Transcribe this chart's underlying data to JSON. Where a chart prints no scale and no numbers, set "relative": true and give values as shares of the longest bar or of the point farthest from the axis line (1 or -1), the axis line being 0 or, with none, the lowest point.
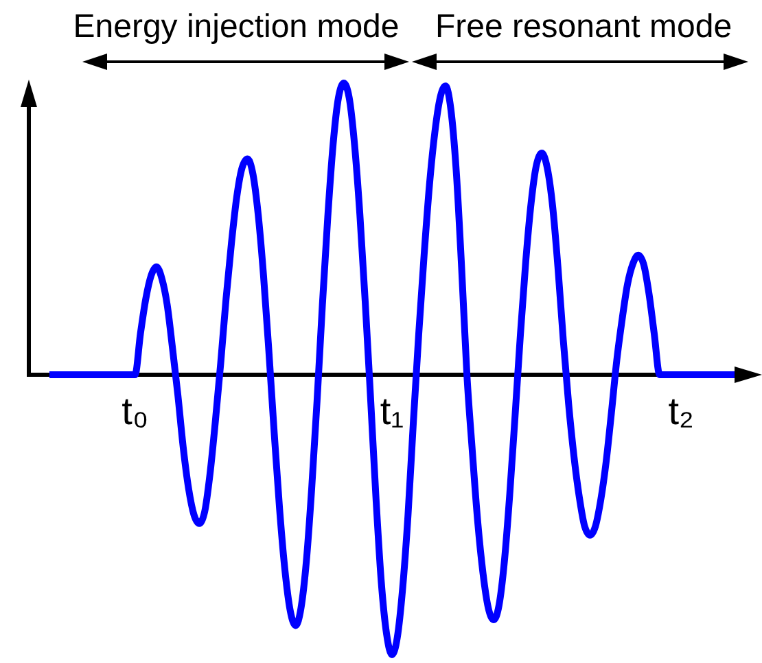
{
  "chart_data": {
    "type": "line",
    "relative": true,
    "tick_labels": "x",
    "annotations": [
      "Energy injection mode",
      "Free resonant mode"
    ],
    "categories": [
      null,
      null,
      null,
      null,
      null,
      null,
      null,
      null,
      null,
      null,
      null,
      null,
      null,
      null,
      null,
      null,
      "t₀",
      null,
      null,
      null,
      null,
      null,
      null,
      null,
      null,
      null,
      null,
      null,
      null,
      null,
      null,
      null,
      null,
      null,
      null,
      null,
      null,
      null,
      null,
      null,
      null,
      null,
      null,
      null,
      null,
      null,
      null,
      null,
      null,
      null,
      null,
      null,
      null,
      null,
      null,
      null,
      null,
      null,
      null,
      null,
      null,
      null,
      null,
      null,
      "t₁",
      null,
      null,
      null,
      null,
      null,
      null,
      null,
      null,
      null,
      null,
      null,
      null,
      null,
      null,
      null,
      null,
      null,
      null,
      null,
      null,
      null,
      null,
      null,
      null,
      null,
      null,
      null,
      null,
      null,
      null,
      null,
      null,
      null,
      null,
      null,
      null,
      null,
      null,
      null,
      null,
      null,
      null,
      null,
      null,
      null,
      null,
      null,
      null,
      null,
      null,
      null,
      null,
      null,
      "t₂",
      null,
      null,
      null,
      null,
      null,
      null,
      null,
      null,
      null,
      null
    ],
    "series": [
      {
        "color": "#0000ff",
        "values": [
          0,
          0,
          0,
          0,
          0,
          0,
          0,
          0,
          0,
          0,
          0,
          0,
          0,
          0,
          0,
          0,
          0,
          0.14,
          0.26,
          0.34,
          0.37,
          0.33,
          0.24,
          0.09,
          -0.07,
          -0.25,
          -0.39,
          -0.48,
          -0.51,
          -0.47,
          -0.34,
          -0.16,
          0.04,
          0.26,
          0.45,
          0.61,
          0.71,
          0.74,
          0.69,
          0.55,
          0.34,
          0.08,
          -0.2,
          -0.46,
          -0.67,
          -0.81,
          -0.86,
          -0.8,
          -0.64,
          -0.39,
          -0.09,
          0.24,
          0.54,
          0.79,
          0.95,
          1,
          0.95,
          0.79,
          0.55,
          0.25,
          -0.08,
          -0.42,
          -0.71,
          -0.89,
          -0.96,
          -0.9,
          -0.73,
          -0.48,
          -0.16,
          0.14,
          0.41,
          0.65,
          0.83,
          0.95,
          0.99,
          0.91,
          0.7,
          0.37,
          0,
          -0.26,
          -0.5,
          -0.68,
          -0.8,
          -0.84,
          -0.79,
          -0.64,
          -0.41,
          -0.14,
          0.14,
          0.39,
          0.59,
          0.72,
          0.76,
          0.71,
          0.58,
          0.37,
          0.12,
          -0.1,
          -0.28,
          -0.42,
          -0.52,
          -0.55,
          -0.52,
          -0.43,
          -0.3,
          -0.13,
          0.05,
          0.19,
          0.31,
          0.38,
          0.41,
          0.38,
          0.28,
          0.14,
          0,
          0,
          0,
          0,
          0,
          0,
          0,
          0,
          0,
          0,
          0,
          0,
          0,
          0,
          0
        ]
      }
    ]
  }
}
